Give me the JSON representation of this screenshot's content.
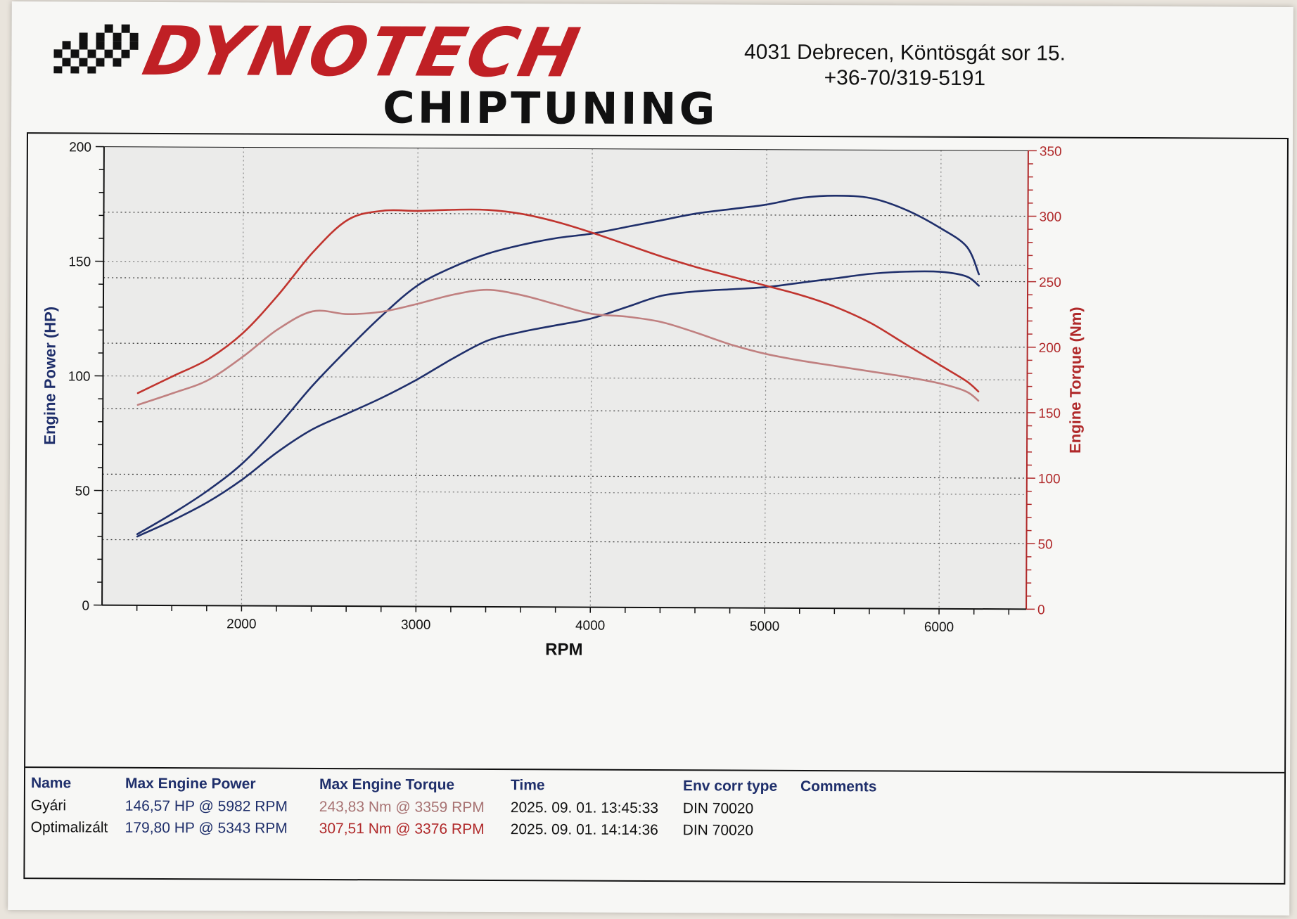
{
  "header": {
    "logo_text": "DYNOTECH",
    "logo_subtext": "CHIPTUNING",
    "address_line1": "4031 Debrecen, Köntösgát sor 15.",
    "address_line2": "+36-70/319-5191"
  },
  "colors": {
    "brand": "#c02025",
    "power": "#1f2f6b",
    "torque": "#c0342e",
    "torque_stock": "#c08080"
  },
  "chart_data": {
    "type": "line",
    "xlabel": "RPM",
    "ylabel_left": "Engine Power (HP)",
    "ylabel_right": "Engine Torque (Nm)",
    "xlim": [
      1200,
      6500
    ],
    "ylim_left": [
      0,
      200
    ],
    "ylim_right": [
      0,
      350
    ],
    "xticks": [
      2000,
      3000,
      4000,
      5000,
      6000
    ],
    "yticks_left": [
      0,
      50,
      100,
      150,
      200
    ],
    "yticks_right": [
      0,
      50,
      100,
      150,
      200,
      250,
      300,
      350
    ],
    "grid": true,
    "series": [
      {
        "axis": "left",
        "color": "#1f2f6b",
        "x": [
          1400,
          1600,
          1800,
          2000,
          2200,
          2400,
          2600,
          2800,
          3000,
          3200,
          3400,
          3600,
          3800,
          4000,
          4200,
          4400,
          4600,
          4800,
          5000,
          5200,
          5400,
          5600,
          5800,
          6000,
          6150,
          6220
        ],
        "y": [
          31,
          40,
          50,
          62,
          78,
          96,
          112,
          127,
          140,
          148,
          154,
          158,
          161,
          163,
          166,
          169,
          172,
          174,
          176,
          179,
          180,
          179,
          174,
          166,
          158,
          146
        ]
      },
      {
        "axis": "left",
        "color": "#1f2f6b",
        "x": [
          1400,
          1600,
          1800,
          2000,
          2200,
          2400,
          2600,
          2800,
          3000,
          3200,
          3400,
          3600,
          3800,
          4000,
          4200,
          4400,
          4600,
          4800,
          5000,
          5200,
          5400,
          5600,
          5800,
          6000,
          6150,
          6220
        ],
        "y": [
          30,
          37,
          45,
          55,
          67,
          77,
          84,
          91,
          99,
          108,
          116,
          120,
          123,
          126,
          131,
          136,
          138,
          139,
          140,
          142,
          144,
          146,
          147,
          147,
          145,
          141
        ]
      },
      {
        "axis": "right",
        "color": "#c0342e",
        "x": [
          1400,
          1600,
          1800,
          2000,
          2200,
          2400,
          2600,
          2800,
          3000,
          3200,
          3400,
          3600,
          3800,
          4000,
          4200,
          4400,
          4600,
          4800,
          5000,
          5200,
          5400,
          5600,
          5800,
          6000,
          6150,
          6220
        ],
        "y": [
          162,
          175,
          188,
          208,
          237,
          270,
          295,
          302,
          302,
          303,
          303,
          300,
          294,
          286,
          277,
          268,
          260,
          253,
          246,
          239,
          230,
          218,
          202,
          186,
          174,
          166
        ]
      },
      {
        "axis": "right",
        "color": "#c08080",
        "x": [
          1400,
          1600,
          1800,
          2000,
          2200,
          2400,
          2600,
          2800,
          3000,
          3200,
          3400,
          3600,
          3800,
          4000,
          4200,
          4400,
          4600,
          4800,
          5000,
          5200,
          5400,
          5600,
          5800,
          6000,
          6150,
          6220
        ],
        "y": [
          153,
          162,
          172,
          190,
          211,
          225,
          223,
          225,
          231,
          238,
          242,
          238,
          231,
          224,
          222,
          218,
          210,
          201,
          194,
          189,
          185,
          181,
          177,
          172,
          166,
          159
        ]
      }
    ]
  },
  "table": {
    "headers": {
      "name": "Name",
      "max_power": "Max Engine Power",
      "max_torque": "Max Engine Torque",
      "time": "Time",
      "env": "Env corr type",
      "comments": "Comments"
    },
    "rows": [
      {
        "name": "Gyári",
        "max_power": "146,57 HP @ 5982 RPM",
        "max_torque": "243,83 Nm @ 3359 RPM",
        "time": "2025. 09. 01. 13:45:33",
        "env": "DIN 70020",
        "comments": ""
      },
      {
        "name": "Optimalizált",
        "max_power": "179,80 HP @ 5343 RPM",
        "max_torque": "307,51 Nm @ 3376 RPM",
        "time": "2025. 09. 01. 14:14:36",
        "env": "DIN 70020",
        "comments": ""
      }
    ]
  }
}
